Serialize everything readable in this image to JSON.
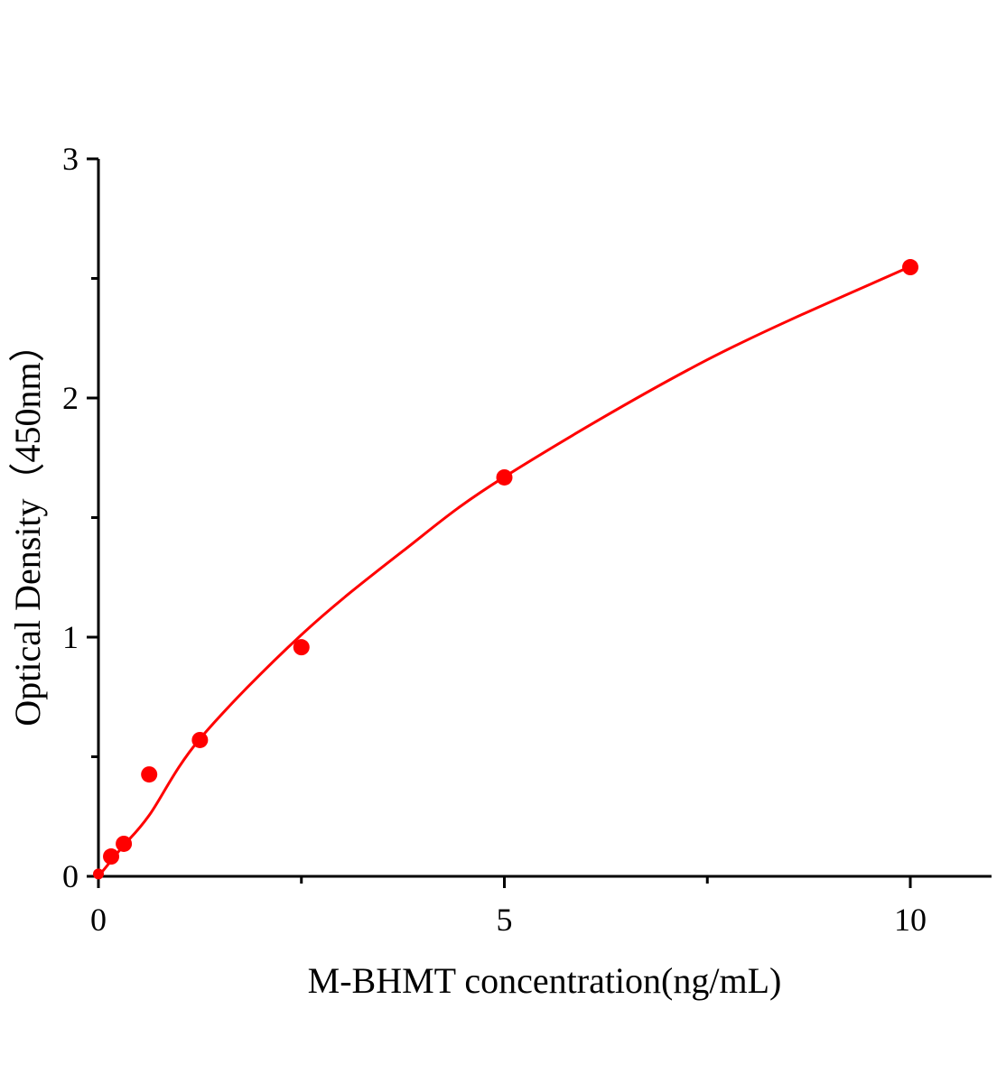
{
  "chart_data": {
    "type": "scatter",
    "title": "",
    "xlabel": "M-BHMT concentration(ng/mL)",
    "ylabel": "Optical Density（450nm）",
    "xlim": [
      0,
      11
    ],
    "ylim": [
      0,
      3
    ],
    "x_ticks": [
      0,
      5,
      10
    ],
    "x_minor_ticks": [
      2.5,
      7.5
    ],
    "y_ticks": [
      0,
      1,
      2,
      3
    ],
    "y_minor_ticks": [
      0.5,
      1.5,
      2.5
    ],
    "grid": false,
    "color": "#ff0000",
    "points": {
      "x": [
        0,
        0.156,
        0.3125,
        0.625,
        1.25,
        2.5,
        5,
        10
      ],
      "y": [
        0.01,
        0.083,
        0.136,
        0.426,
        0.57,
        0.958,
        1.668,
        2.547
      ]
    },
    "fit_curve": {
      "x": [
        0,
        0.156,
        0.3125,
        0.625,
        1.25,
        2.5,
        3.75,
        5,
        7.5,
        10
      ],
      "y": [
        0,
        0.065,
        0.13,
        0.255,
        0.575,
        1.01,
        1.36,
        1.67,
        2.16,
        2.55
      ]
    }
  }
}
